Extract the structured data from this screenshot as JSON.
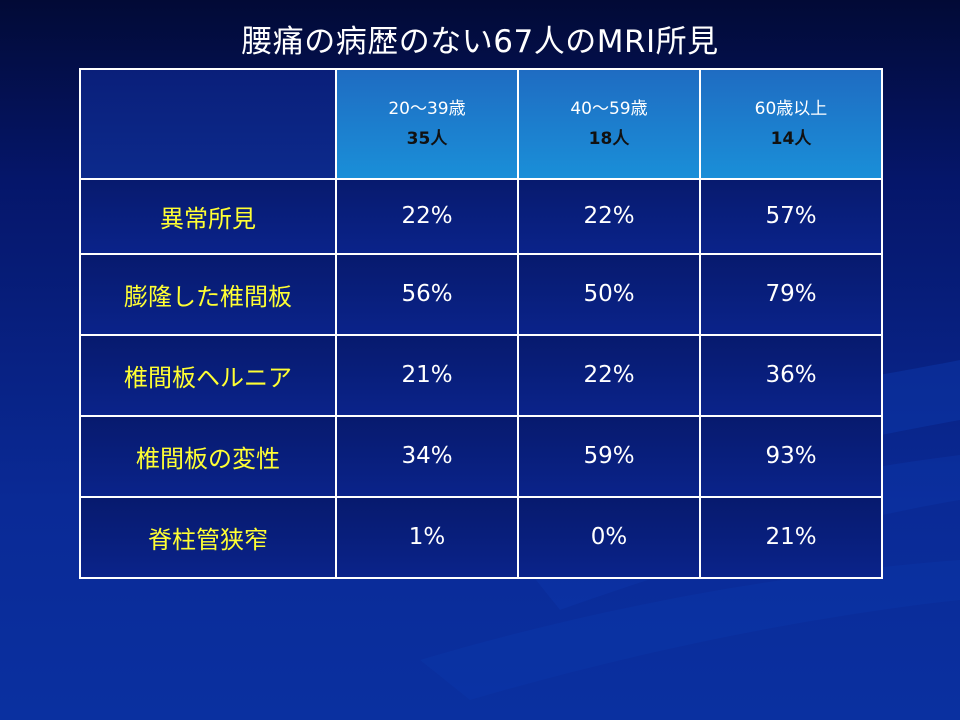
{
  "title": "腰痛の病歴のない67人のMRI所見",
  "table": {
    "header": [
      {
        "age": "",
        "count": ""
      },
      {
        "age": "20～39歳",
        "count": "35人"
      },
      {
        "age": "40～59歳",
        "count": "18人"
      },
      {
        "age": "60歳以上",
        "count": "14人"
      }
    ],
    "rows": [
      {
        "label": "異常所見",
        "values": [
          "22%",
          "22%",
          "57%"
        ]
      },
      {
        "label": "膨隆した椎間板",
        "values": [
          "56%",
          "50%",
          "79%"
        ]
      },
      {
        "label": "椎間板ヘルニア",
        "values": [
          "21%",
          "22%",
          "36%"
        ]
      },
      {
        "label": "椎間板の変性",
        "values": [
          "34%",
          "59%",
          "93%"
        ]
      },
      {
        "label": "脊柱管狭窄",
        "values": [
          "1%",
          "0%",
          "21%"
        ]
      }
    ]
  },
  "colors": {
    "background": "#0a2a96",
    "header_cell": "#1a8fd8",
    "row_label_text": "#ffff33",
    "border": "#ffffff"
  }
}
